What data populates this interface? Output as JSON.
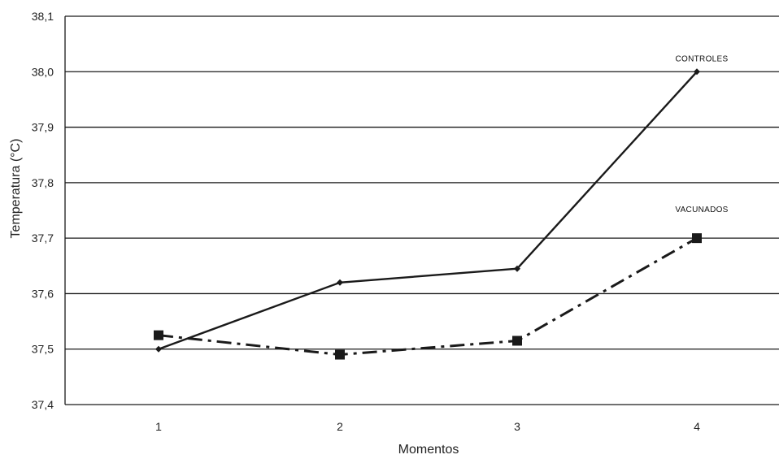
{
  "chart_data": {
    "type": "line",
    "title": "",
    "xlabel": "Momentos",
    "ylabel": "Temperatura (°C)",
    "categories": [
      "1",
      "2",
      "3",
      "4"
    ],
    "ylim": [
      37.4,
      38.1
    ],
    "yticks": [
      "37,4",
      "37,5",
      "37,6",
      "37,7",
      "37,8",
      "37,9",
      "38,0",
      "38,1"
    ],
    "grid": true,
    "series": [
      {
        "name": "CONTROLES",
        "values": [
          37.5,
          37.62,
          37.645,
          38.0
        ],
        "line_style": "solid",
        "marker": "diamond",
        "color": "#1a1a1a"
      },
      {
        "name": "VACUNADOS",
        "values": [
          37.525,
          37.49,
          37.515,
          37.7
        ],
        "line_style": "dash-dot",
        "marker": "square",
        "color": "#1a1a1a"
      }
    ]
  }
}
